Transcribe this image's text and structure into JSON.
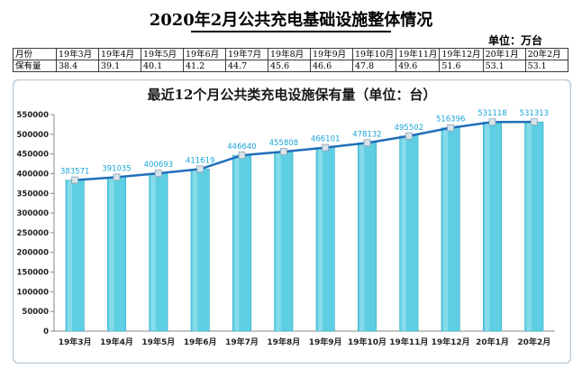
{
  "page": {
    "title": "2020年2月公共充电基础设施整体情况",
    "unit": "单位：万台"
  },
  "table": {
    "row_header_1": "月份",
    "row_header_2": "保有量",
    "months": [
      "19年3月",
      "19年4月",
      "19年5月",
      "19年6月",
      "19年7月",
      "19年8月",
      "19年9月",
      "19年10月",
      "19年11月",
      "19年12月",
      "20年1月",
      "20年2月"
    ],
    "values": [
      "38.4",
      "39.1",
      "40.1",
      "41.2",
      "44.7",
      "45.6",
      "46.6",
      "47.8",
      "49.6",
      "51.6",
      "53.1",
      "53.1"
    ]
  },
  "chart_data": {
    "type": "bar",
    "title": "最近12个月公共类充电设施保有量（单位：台）",
    "categories": [
      "19年3月",
      "19年4月",
      "19年5月",
      "19年6月",
      "19年7月",
      "19年8月",
      "19年9月",
      "19年10月",
      "19年11月",
      "19年12月",
      "20年1月",
      "20年2月"
    ],
    "series": [
      {
        "values": [
          383571,
          391035,
          400693,
          411619,
          446640,
          455808,
          466101,
          478132,
          495502,
          516396,
          531118,
          531313
        ]
      }
    ],
    "overlay_line": true,
    "yticks": [
      0,
      50000,
      100000,
      150000,
      200000,
      250000,
      300000,
      350000,
      400000,
      450000,
      500000,
      550000
    ],
    "ylim": [
      0,
      550000
    ],
    "grid": false,
    "legend": "none",
    "colors": {
      "bar": "#5ecfe3",
      "bar_edge": "#2fa9c4",
      "line": "#1f6fb8",
      "marker": "#d8e4ec",
      "label": "#1aa5d8",
      "border": "#b6c9d8"
    }
  }
}
